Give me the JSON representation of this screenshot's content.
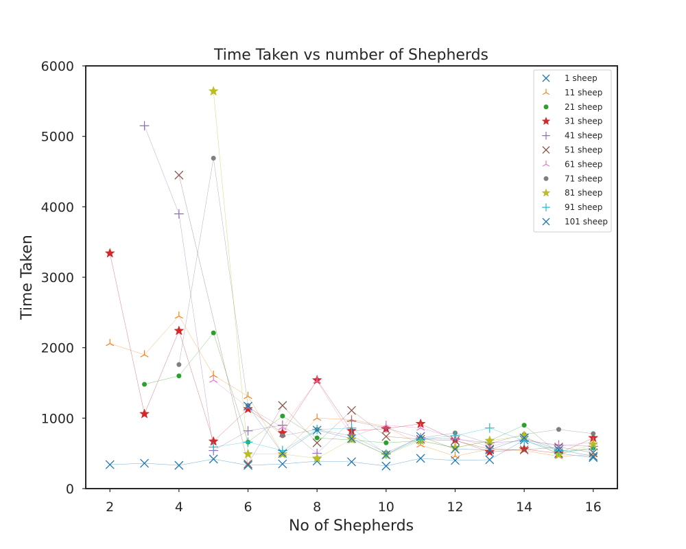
{
  "chart_data": {
    "type": "line",
    "title": "Time Taken vs number of Shepherds",
    "xlabel": "No of Shepherds",
    "ylabel": "Time Taken",
    "xlim": [
      1.3,
      16.7
    ],
    "ylim": [
      0,
      6000
    ],
    "xticks": [
      2,
      4,
      6,
      8,
      10,
      12,
      14,
      16
    ],
    "yticks": [
      0,
      1000,
      2000,
      3000,
      4000,
      5000,
      6000
    ],
    "grid": false,
    "legend_position": "top-right",
    "series": [
      {
        "name": "1 sheep",
        "color": "#1f77b4",
        "marker": "x",
        "x": [
          2,
          3,
          4,
          5,
          6,
          7,
          8,
          9,
          10,
          11,
          12,
          13,
          14,
          15,
          16
        ],
        "y": [
          340,
          360,
          330,
          420,
          330,
          350,
          390,
          380,
          320,
          430,
          400,
          410,
          690,
          500,
          440
        ]
      },
      {
        "name": "11 sheep",
        "color": "#ff7f0e",
        "marker": "tri",
        "x": [
          2,
          3,
          4,
          5,
          6,
          7,
          8,
          9,
          10,
          11,
          12,
          13,
          14,
          15,
          16
        ],
        "y": [
          2060,
          1900,
          2450,
          1610,
          1310,
          500,
          1000,
          980,
          880,
          620,
          460,
          560,
          540,
          460,
          480
        ]
      },
      {
        "name": "21 sheep",
        "color": "#2ca02c",
        "marker": "dot",
        "x": [
          3,
          4,
          5,
          6,
          7,
          8,
          9,
          10,
          11,
          12,
          13,
          14,
          15,
          16
        ],
        "y": [
          1480,
          1600,
          2210,
          660,
          1030,
          720,
          690,
          650,
          680,
          580,
          680,
          900,
          500,
          580
        ]
      },
      {
        "name": "31 sheep",
        "color": "#d62728",
        "marker": "star",
        "x": [
          2,
          3,
          4,
          5,
          6,
          7,
          8,
          9,
          10,
          11,
          12,
          13,
          14,
          15,
          16
        ],
        "y": [
          3340,
          1060,
          2240,
          670,
          1130,
          790,
          1540,
          820,
          850,
          920,
          690,
          520,
          560,
          500,
          720
        ]
      },
      {
        "name": "41 sheep",
        "color": "#9467bd",
        "marker": "plus",
        "x": [
          3,
          4,
          5,
          6,
          7,
          8,
          9,
          10,
          11,
          12,
          13,
          14,
          15,
          16
        ],
        "y": [
          5150,
          3900,
          540,
          820,
          900,
          500,
          960,
          860,
          720,
          700,
          650,
          680,
          620,
          600
        ]
      },
      {
        "name": "51 sheep",
        "color": "#8c564b",
        "marker": "x",
        "x": [
          4,
          6,
          7,
          8,
          9,
          10,
          11,
          12,
          13,
          14,
          15,
          16
        ],
        "y": [
          4450,
          350,
          1180,
          650,
          1110,
          740,
          700,
          680,
          560,
          550,
          590,
          510
        ]
      },
      {
        "name": "61 sheep",
        "color": "#e377c2",
        "marker": "tri",
        "x": [
          5,
          6,
          7,
          8,
          9,
          10,
          11,
          12,
          13,
          14,
          15,
          16
        ],
        "y": [
          1540,
          1150,
          870,
          1530,
          740,
          900,
          860,
          720,
          600,
          700,
          600,
          660
        ]
      },
      {
        "name": "71 sheep",
        "color": "#7f7f7f",
        "marker": "dot",
        "x": [
          4,
          5,
          6,
          7,
          8,
          9,
          10,
          11,
          12,
          13,
          14,
          15,
          16
        ],
        "y": [
          1760,
          4690,
          1180,
          750,
          840,
          750,
          510,
          720,
          790,
          640,
          770,
          840,
          780
        ]
      },
      {
        "name": "81 sheep",
        "color": "#bcbd22",
        "marker": "star",
        "x": [
          5,
          6,
          7,
          8,
          9,
          10,
          11,
          12,
          13,
          14,
          15,
          16
        ],
        "y": [
          5640,
          490,
          490,
          430,
          700,
          480,
          680,
          580,
          680,
          750,
          480,
          630
        ]
      },
      {
        "name": "91 sheep",
        "color": "#17becf",
        "marker": "plus",
        "x": [
          5,
          6,
          7,
          8,
          9,
          10,
          11,
          12,
          13,
          14,
          15,
          16
        ],
        "y": [
          590,
          660,
          540,
          840,
          860,
          490,
          700,
          750,
          860,
          680,
          540,
          550
        ]
      },
      {
        "name": "101 sheep",
        "color": "#1f77b4",
        "marker": "x",
        "x": [
          6,
          7,
          8,
          9,
          10,
          11,
          12,
          13,
          14,
          15,
          16
        ],
        "y": [
          1170,
          500,
          830,
          710,
          480,
          740,
          560,
          550,
          720,
          550,
          460
        ]
      }
    ]
  }
}
